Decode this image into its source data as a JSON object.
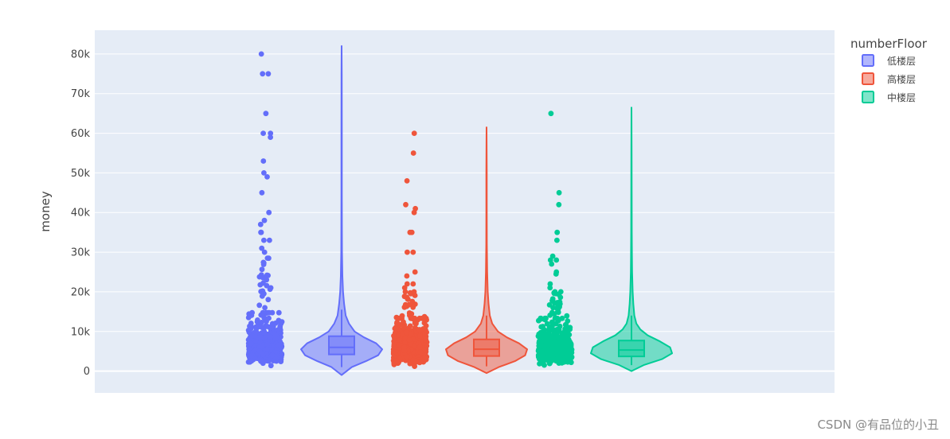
{
  "chart_data": {
    "type": "violin",
    "xlabel": "",
    "ylabel": "money",
    "ylim": [
      -5500,
      86000
    ],
    "yticks": [
      0,
      10000,
      20000,
      30000,
      40000,
      50000,
      60000,
      70000,
      80000
    ],
    "ytick_labels": [
      "0",
      "10k",
      "20k",
      "30k",
      "40k",
      "50k",
      "60k",
      "70k",
      "80k"
    ],
    "grid": true,
    "legend": {
      "title": "numberFloor",
      "placement": "top-right"
    },
    "background_color": "#E5ECF6",
    "series": [
      {
        "name": "低楼层",
        "color": "#636EFA",
        "box": {
          "q1": 4200,
          "median": 6000,
          "q3": 8800,
          "whisker_low": 1000,
          "whisker_high": 15500
        },
        "range": [
          -1000,
          82000
        ],
        "density": [
          [
            -1000,
            0.0
          ],
          [
            1000,
            0.25
          ],
          [
            2500,
            0.6
          ],
          [
            4000,
            0.9
          ],
          [
            5500,
            1.0
          ],
          [
            7000,
            0.85
          ],
          [
            8500,
            0.55
          ],
          [
            10000,
            0.32
          ],
          [
            12000,
            0.18
          ],
          [
            14000,
            0.1
          ],
          [
            17000,
            0.06
          ],
          [
            20000,
            0.035
          ],
          [
            24000,
            0.02
          ],
          [
            30000,
            0.01
          ],
          [
            36000,
            0.008
          ],
          [
            45000,
            0.006
          ],
          [
            60000,
            0.005
          ],
          [
            75000,
            0.004
          ],
          [
            82000,
            0.0
          ]
        ],
        "outliers": [
          80000,
          75000,
          75000,
          65000,
          60000,
          60000,
          59000,
          53000,
          50000,
          49000,
          45000,
          40000,
          38000,
          37000,
          35000,
          35000,
          33000,
          33000,
          31000,
          30000
        ]
      },
      {
        "name": "高楼层",
        "color": "#EF553B",
        "box": {
          "q1": 3800,
          "median": 5500,
          "q3": 8000,
          "whisker_low": 1200,
          "whisker_high": 14000
        },
        "range": [
          -500,
          61500
        ],
        "density": [
          [
            -500,
            0.0
          ],
          [
            1000,
            0.3
          ],
          [
            2500,
            0.7
          ],
          [
            4000,
            0.95
          ],
          [
            5500,
            1.0
          ],
          [
            7000,
            0.8
          ],
          [
            8500,
            0.5
          ],
          [
            10000,
            0.28
          ],
          [
            12000,
            0.14
          ],
          [
            14000,
            0.08
          ],
          [
            17000,
            0.05
          ],
          [
            20000,
            0.03
          ],
          [
            25000,
            0.015
          ],
          [
            32000,
            0.008
          ],
          [
            40000,
            0.006
          ],
          [
            50000,
            0.005
          ],
          [
            61500,
            0.0
          ]
        ],
        "outliers": [
          60000,
          55000,
          48000,
          42000,
          41000,
          40000,
          35000,
          35000,
          30000,
          30000,
          25000,
          24000,
          22000,
          22000,
          21000,
          20000,
          20000
        ]
      },
      {
        "name": "中楼层",
        "color": "#00CC96",
        "box": {
          "q1": 3700,
          "median": 5300,
          "q3": 7700,
          "whisker_low": 1500,
          "whisker_high": 14000
        },
        "range": [
          0,
          66500
        ],
        "density": [
          [
            0,
            0.0
          ],
          [
            1500,
            0.3
          ],
          [
            3000,
            0.75
          ],
          [
            4500,
            1.0
          ],
          [
            6000,
            0.95
          ],
          [
            7500,
            0.7
          ],
          [
            9000,
            0.4
          ],
          [
            10500,
            0.22
          ],
          [
            12000,
            0.12
          ],
          [
            14000,
            0.07
          ],
          [
            17000,
            0.045
          ],
          [
            20000,
            0.03
          ],
          [
            25000,
            0.015
          ],
          [
            29000,
            0.012
          ],
          [
            35000,
            0.007
          ],
          [
            45000,
            0.005
          ],
          [
            55000,
            0.004
          ],
          [
            66500,
            0.0
          ]
        ],
        "outliers": [
          65000,
          45000,
          42000,
          35000,
          33000,
          29000,
          28000,
          28000,
          27000,
          25000,
          24500,
          22000,
          21000,
          20000,
          20000
        ]
      }
    ]
  },
  "watermark": "CSDN @有品位的小丑"
}
